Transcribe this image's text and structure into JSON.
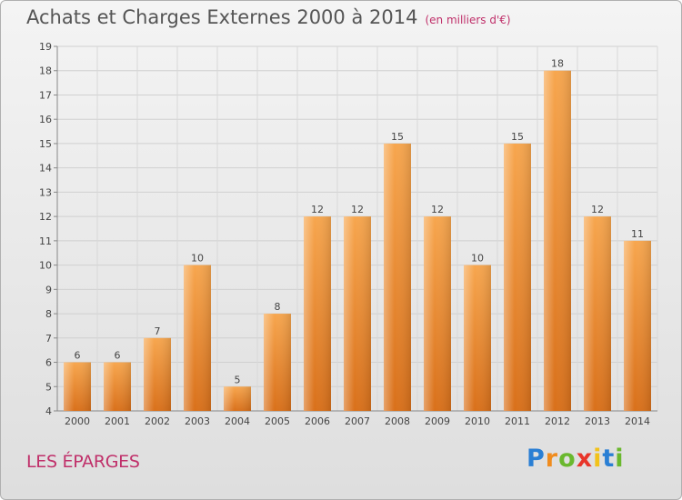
{
  "title": "Achats et Charges Externes 2000 à 2014",
  "subtitle": "(en milliers d'€)",
  "entity_name": "LES ÉPARGES",
  "logo": {
    "letters": [
      "P",
      "r",
      "o",
      "x",
      "i",
      "t",
      "i"
    ],
    "colors": [
      "#2a7fd4",
      "#f08c1e",
      "#6ab82e",
      "#e8352a",
      "#f2c21a",
      "#2a7fd4",
      "#6ab82e"
    ]
  },
  "chart_data": {
    "type": "bar",
    "categories": [
      "2000",
      "2001",
      "2002",
      "2003",
      "2004",
      "2005",
      "2006",
      "2007",
      "2008",
      "2009",
      "2010",
      "2011",
      "2012",
      "2013",
      "2014"
    ],
    "values": [
      6,
      6,
      7,
      10,
      5,
      8,
      12,
      12,
      15,
      12,
      10,
      15,
      18,
      12,
      11
    ],
    "ylim": [
      4,
      19
    ],
    "yticks": [
      4,
      5,
      6,
      7,
      8,
      9,
      10,
      11,
      12,
      13,
      14,
      15,
      16,
      17,
      18,
      19
    ],
    "grid": true,
    "bar_color": "#f0902c",
    "data_labels": true
  }
}
